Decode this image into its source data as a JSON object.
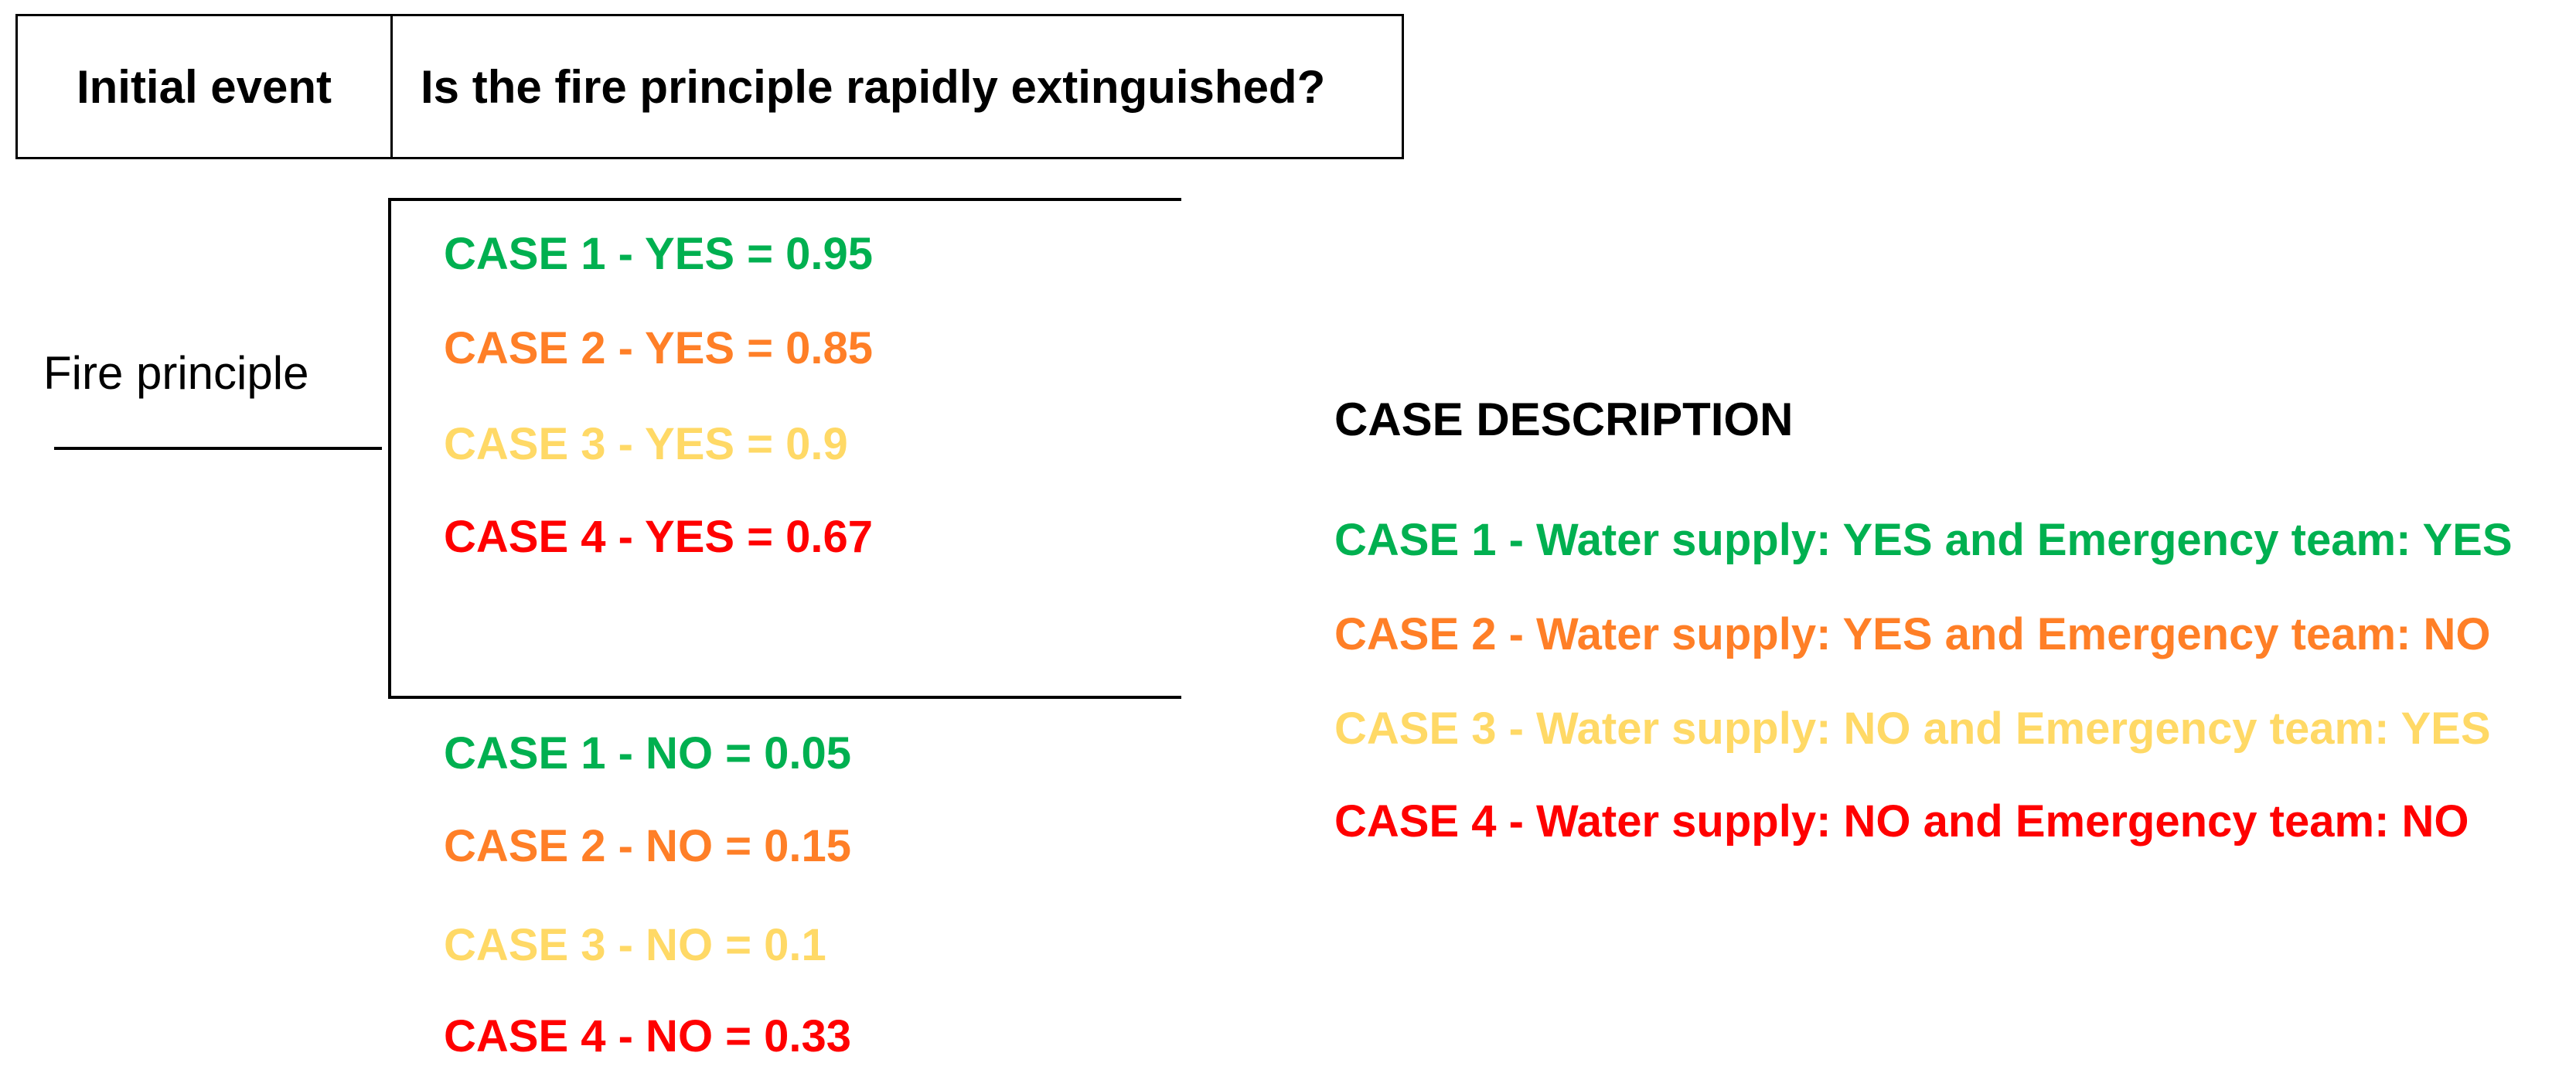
{
  "header": {
    "initial_event_label": "Initial event",
    "question_label": "Is the fire principle rapidly extinguished?"
  },
  "event": {
    "label": "Fire principle"
  },
  "colors": {
    "case1": "#00b050",
    "case2": "#ff7f27",
    "case3": "#ffd966",
    "case4": "#ff0000"
  },
  "yes_branch": [
    {
      "text": "CASE 1 - YES = 0.95",
      "case": 1,
      "probability": 0.95
    },
    {
      "text": "CASE 2 - YES = 0.85",
      "case": 2,
      "probability": 0.85
    },
    {
      "text": "CASE 3 - YES = 0.9",
      "case": 3,
      "probability": 0.9
    },
    {
      "text": "CASE 4 - YES = 0.67",
      "case": 4,
      "probability": 0.67
    }
  ],
  "no_branch": [
    {
      "text": "CASE 1 - NO = 0.05",
      "case": 1,
      "probability": 0.05
    },
    {
      "text": "CASE 2 - NO = 0.15",
      "case": 2,
      "probability": 0.15
    },
    {
      "text": "CASE 3 - NO = 0.1",
      "case": 3,
      "probability": 0.1
    },
    {
      "text": "CASE 4 - NO = 0.33",
      "case": 4,
      "probability": 0.33
    }
  ],
  "case_description": {
    "title": "CASE DESCRIPTION",
    "items": [
      {
        "text": "CASE 1 - Water supply: YES and Emergency team: YES",
        "case": 1
      },
      {
        "text": "CASE 2 - Water supply: YES and Emergency team: NO",
        "case": 2
      },
      {
        "text": "CASE 3 - Water supply: NO and Emergency team: YES",
        "case": 3
      },
      {
        "text": "CASE 4 - Water supply: NO and Emergency team: NO",
        "case": 4
      }
    ]
  }
}
